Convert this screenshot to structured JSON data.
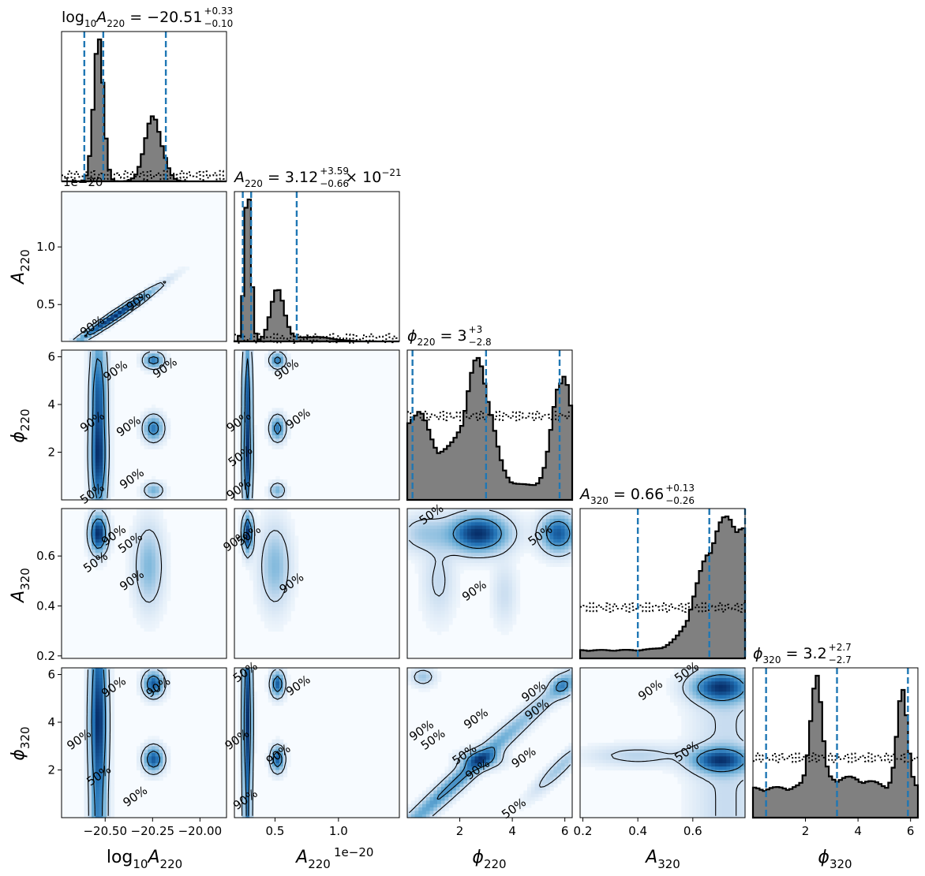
{
  "chart_data": {
    "type": "corner",
    "parameters": [
      {
        "key": "logA220",
        "symbol": "log",
        "sub1": "10",
        "mid": "A",
        "sub2": "220"
      },
      {
        "key": "A220",
        "symbol": "A",
        "sub": "220"
      },
      {
        "key": "phi220",
        "symbol": "ϕ",
        "sub": "220"
      },
      {
        "key": "A320",
        "symbol": "A",
        "sub": "320"
      },
      {
        "key": "phi320",
        "symbol": "ϕ",
        "sub": "320"
      }
    ],
    "titles": {
      "logA220": {
        "lhs": "log",
        "sub1": "10",
        "A": "A",
        "sub2": "220",
        "median": " = −20.51",
        "plus": "+0.33",
        "minus": "−0.10"
      },
      "A220": {
        "A": "A",
        "sub": "220",
        "median": " = 3.12",
        "plus": "+3.59",
        "minus": "−0.66",
        "times": " × 10",
        "exp": "−21"
      },
      "phi220": {
        "A": "ϕ",
        "sub": "220",
        "median": " = 3",
        "plus": "+3",
        "minus": "−2.8"
      },
      "A320": {
        "A": "A",
        "sub": "320",
        "median": " = 0.66",
        "plus": "+0.13",
        "minus": "−0.26"
      },
      "phi320": {
        "A": "ϕ",
        "sub": "320",
        "median": " = 3.2",
        "plus": "+2.7",
        "minus": "−2.7"
      }
    },
    "ranges": {
      "logA220": [
        -20.73,
        -19.86
      ],
      "A220": [
        0.18,
        1.48
      ],
      "phi220": [
        0.0,
        6.28
      ],
      "A320": [
        0.19,
        0.79
      ],
      "phi320": [
        0.0,
        6.28
      ]
    },
    "ticks": {
      "logA220": [
        -20.5,
        -20.25,
        -20.0
      ],
      "A220": [
        0.5,
        1.0
      ],
      "A220_y": [
        0.5,
        1.0
      ],
      "phi220": [
        2,
        4,
        6
      ],
      "A320": [
        0.2,
        0.4,
        0.6
      ],
      "A320_y": [
        0.2,
        0.4,
        0.6
      ],
      "phi320": [
        2,
        4,
        6
      ]
    },
    "tick_labels": {
      "logA220": [
        "−20.50",
        "−20.25",
        "−20.00"
      ],
      "A220": [
        "0.5",
        "1.0"
      ],
      "A220_y": [
        "0.5",
        "1.0"
      ],
      "phi220": [
        "2",
        "4",
        "6"
      ],
      "A320": [
        "0.2",
        "0.4",
        "0.6"
      ],
      "A320_y": [
        "0.2",
        "0.4",
        "0.6"
      ],
      "phi320": [
        "2",
        "4",
        "6"
      ]
    },
    "offset_text": "1e−20",
    "quantiles": {
      "logA220": [
        -20.61,
        -20.51,
        -20.18
      ],
      "A220": [
        0.246,
        0.312,
        0.671
      ],
      "phi220": [
        0.2,
        3.0,
        5.8
      ],
      "A320": [
        0.4,
        0.66,
        0.79
      ],
      "phi320": [
        0.5,
        3.2,
        5.9
      ]
    },
    "contour_levels": [
      "50%",
      "90%"
    ],
    "prior_style": "dotted",
    "colors": {
      "hist_fill": "#808080",
      "hist_edge": "#000000",
      "quantile": "#1f77b4",
      "density": "#08306b",
      "density_bg": "#f7fbff"
    }
  }
}
